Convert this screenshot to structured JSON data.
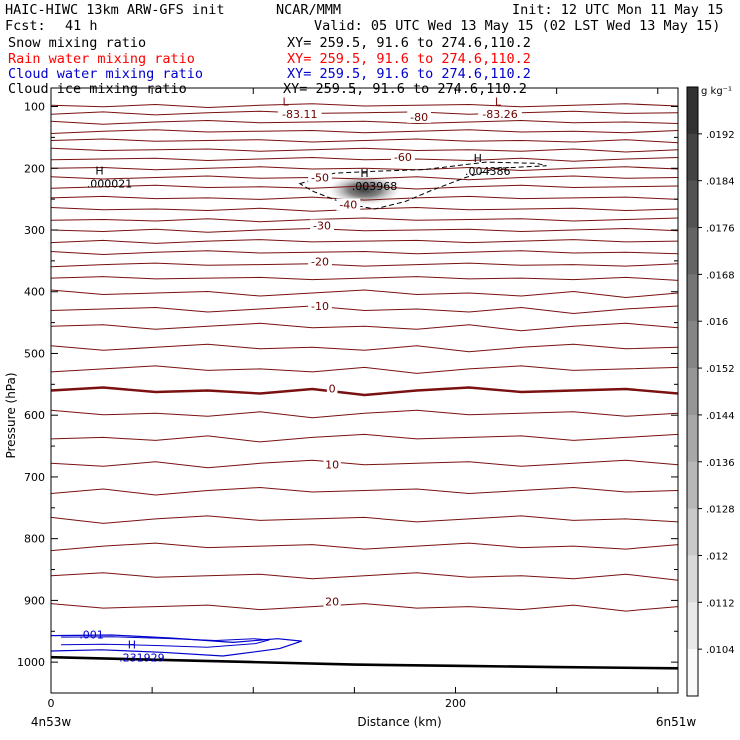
{
  "header": {
    "title": "HAIC-HIWC 13km ARW-GFS init",
    "org": "NCAR/MMM",
    "init": "Init: 12 UTC Mon 11 May 15",
    "fcst_label": "Fcst:",
    "fcst_value": "41 h",
    "valid": "Valid: 05 UTC Wed 13 May 15 (02 LST Wed 13 May 15)"
  },
  "fields": [
    {
      "name": "Snow mixing ratio",
      "xy": "XY= 259.5, 91.6 to 274.6,110.2",
      "color": "#000000"
    },
    {
      "name": "Rain water mixing ratio",
      "xy": "XY= 259.5, 91.6 to 274.6,110.2",
      "color": "#ff0000"
    },
    {
      "name": "Cloud water mixing ratio",
      "xy": "XY= 259.5, 91.6 to 274.6,110.2",
      "color": "#0000cc"
    },
    {
      "name": "Cloud ice mixing ratio",
      "xy": "XY= 259.5, 91.6 to 274.6,110.2",
      "color": "#000000"
    }
  ],
  "chart_data": {
    "type": "contour",
    "xlabel": "Distance (km)",
    "ylabel": "Pressure (hPa)",
    "x_left_label": "4n53w",
    "x_right_label": "6n51w",
    "xlim": [
      0,
      310
    ],
    "ylim": [
      1050,
      70
    ],
    "x_ticks": [
      0,
      50,
      100,
      150,
      200,
      250,
      300
    ],
    "x_tick_labels": [
      "0",
      "200"
    ],
    "x_tick_label_values": [
      0,
      200
    ],
    "y_ticks": [
      100,
      150,
      200,
      250,
      300,
      350,
      400,
      450,
      500,
      550,
      600,
      650,
      700,
      750,
      800,
      850,
      900,
      950,
      1000
    ],
    "y_tick_labels": [
      "100",
      "200",
      "300",
      "400",
      "500",
      "600",
      "700",
      "800",
      "900",
      "1000"
    ],
    "y_tick_label_values": [
      100,
      200,
      300,
      400,
      500,
      600,
      700,
      800,
      900,
      1000
    ],
    "temperature_contours": [
      {
        "p": 98
      },
      {
        "p": 110
      },
      {
        "p": 125
      },
      {
        "p": 140
      },
      {
        "p": 155
      },
      {
        "p": 170
      },
      {
        "p": 185
      },
      {
        "p": 200
      },
      {
        "p": 215
      },
      {
        "p": 230
      },
      {
        "p": 248
      },
      {
        "p": 266
      },
      {
        "p": 283
      },
      {
        "p": 300
      },
      {
        "p": 318
      },
      {
        "p": 336
      },
      {
        "p": 356
      },
      {
        "p": 378
      },
      {
        "p": 402
      },
      {
        "p": 428
      },
      {
        "p": 456
      },
      {
        "p": 490
      },
      {
        "p": 525
      },
      {
        "p": 560,
        "bold": true
      },
      {
        "p": 597
      },
      {
        "p": 636
      },
      {
        "p": 678
      },
      {
        "p": 722
      },
      {
        "p": 768
      },
      {
        "p": 812
      },
      {
        "p": 860
      },
      {
        "p": 910
      }
    ],
    "contour_labels": [
      {
        "text": "-83.11",
        "x": 123,
        "p": 115
      },
      {
        "text": "-80",
        "x": 182,
        "p": 120
      },
      {
        "text": "-83.26",
        "x": 222,
        "p": 115
      },
      {
        "text": "-60",
        "x": 174,
        "p": 185
      },
      {
        "text": "-50",
        "x": 133,
        "p": 218
      },
      {
        "text": "-40",
        "x": 147,
        "p": 262
      },
      {
        "text": "-30",
        "x": 134,
        "p": 296
      },
      {
        "text": "-20",
        "x": 133,
        "p": 354
      },
      {
        "text": "-10",
        "x": 133,
        "p": 426
      },
      {
        "text": "0",
        "x": 139,
        "p": 560
      },
      {
        "text": "10",
        "x": 139,
        "p": 683
      },
      {
        "text": "20",
        "x": 139,
        "p": 905
      }
    ],
    "extrema": [
      {
        "kind": "L",
        "x": 116,
        "p": 98
      },
      {
        "kind": "L",
        "x": 221,
        "p": 98
      },
      {
        "kind": "H",
        "x": 24,
        "p": 210,
        "value": ".000021"
      },
      {
        "kind": "H",
        "x": 155,
        "p": 214,
        "value": ".003968"
      },
      {
        "kind": "H",
        "x": 211,
        "p": 190,
        "value": ".004386"
      },
      {
        "kind": "H",
        "x": 40,
        "p": 978,
        "value": ".231929"
      }
    ],
    "cloud_ice_contour": {
      "style": "dashed",
      "points": [
        [
          123,
          225
        ],
        [
          140,
          208
        ],
        [
          160,
          205
        ],
        [
          185,
          202
        ],
        [
          200,
          196
        ],
        [
          215,
          190
        ],
        [
          240,
          192
        ],
        [
          245,
          196
        ],
        [
          220,
          200
        ],
        [
          205,
          215
        ],
        [
          188,
          236
        ],
        [
          175,
          254
        ],
        [
          160,
          266
        ],
        [
          145,
          257
        ],
        [
          130,
          238
        ],
        [
          123,
          225
        ]
      ]
    },
    "cloud_water_contour": {
      "label": ".001",
      "label_x": 14,
      "label_p": 962,
      "points": [
        [
          0,
          957
        ],
        [
          30,
          956
        ],
        [
          60,
          961
        ],
        [
          90,
          968
        ],
        [
          112,
          962
        ],
        [
          124,
          966
        ],
        [
          113,
          978
        ],
        [
          85,
          990
        ],
        [
          55,
          984
        ],
        [
          25,
          980
        ],
        [
          0,
          982
        ]
      ]
    },
    "snow_max": {
      "x": 155,
      "p": 235
    },
    "terrain": [
      [
        0,
        992
      ],
      [
        50,
        996
      ],
      [
        100,
        1000
      ],
      [
        150,
        1004
      ],
      [
        200,
        1006
      ],
      [
        250,
        1008
      ],
      [
        310,
        1010
      ]
    ],
    "colorbar": {
      "unit": "g kg⁻¹",
      "levels": [
        ".0192",
        ".0184",
        ".0176",
        ".0168",
        ".016",
        ".0152",
        ".0144",
        ".0136",
        ".0128",
        ".012",
        ".0112",
        ".0104"
      ],
      "level_values": [
        0.0192,
        0.0184,
        0.0176,
        0.0168,
        0.016,
        0.0152,
        0.0144,
        0.0136,
        0.0128,
        0.012,
        0.0112,
        0.0104
      ]
    },
    "colors": {
      "temperature": "#7a1010",
      "cloud_water": "#0000cc",
      "cloud_ice": "#000000",
      "terrain": "#000000"
    }
  }
}
